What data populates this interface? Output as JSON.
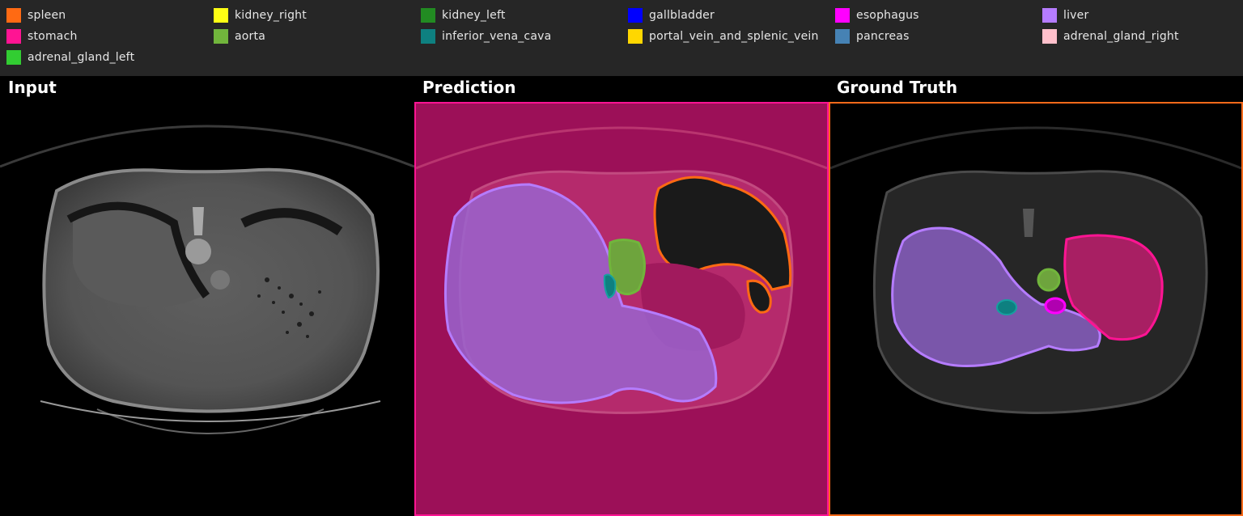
{
  "legend": {
    "items": [
      {
        "label": "spleen",
        "color": "#ff6a13"
      },
      {
        "label": "kidney_right",
        "color": "#ffff14"
      },
      {
        "label": "kidney_left",
        "color": "#228b22"
      },
      {
        "label": "gallbladder",
        "color": "#0000ff"
      },
      {
        "label": "esophagus",
        "color": "#ff00ff"
      },
      {
        "label": "liver",
        "color": "#b57cff"
      },
      {
        "label": "stomach",
        "color": "#ff1493"
      },
      {
        "label": "aorta",
        "color": "#71b53c"
      },
      {
        "label": "inferior_vena_cava",
        "color": "#0e8080"
      },
      {
        "label": "portal_vein_and_splenic_vein",
        "color": "#ffd700"
      },
      {
        "label": "pancreas",
        "color": "#4682b4"
      },
      {
        "label": "adrenal_gland_right",
        "color": "#ffc0cb"
      },
      {
        "label": "adrenal_gland_left",
        "color": "#32cd32"
      }
    ]
  },
  "panels": {
    "input_title": "Input",
    "prediction_title": "Prediction",
    "ground_truth_title": "Ground Truth"
  },
  "colors": {
    "background": "#000000",
    "legend_bar": "#262626",
    "prediction_border": "#ff1493",
    "ground_truth_border": "#ff6a1a"
  }
}
